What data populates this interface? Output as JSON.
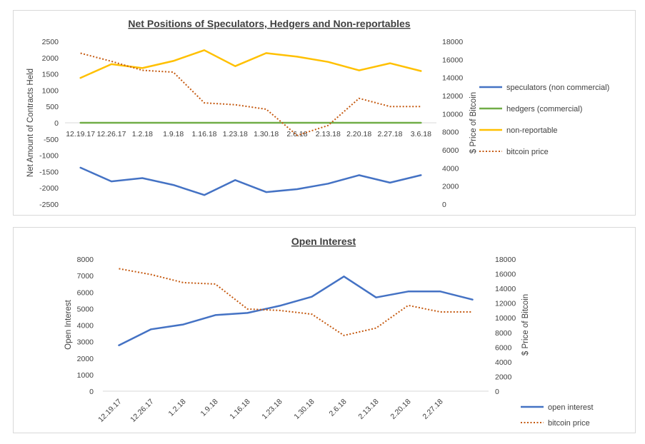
{
  "chart_data": [
    {
      "type": "line",
      "title": "Net Positions of Speculators, Hedgers and Non-reportables",
      "categories": [
        "12.19.17",
        "12.26.17",
        "1.2.18",
        "1.9.18",
        "1.16.18",
        "1.23.18",
        "1.30.18",
        "2.6.18",
        "2.13.18",
        "2.20.18",
        "2.27.18",
        "3.6.18"
      ],
      "ylabel": "Net Amount of Contracts Held",
      "y2label": "$ Price of Bitcoin",
      "ylim": [
        -2500,
        2500
      ],
      "y_ticks": [
        "2500",
        "2000",
        "1500",
        "1000",
        "500",
        "0",
        "-500",
        "-1000",
        "-1500",
        "-2000",
        "-2500"
      ],
      "y2lim": [
        0,
        18000
      ],
      "y2_ticks": [
        "18000",
        "16000",
        "14000",
        "12000",
        "10000",
        "8000",
        "6000",
        "4000",
        "2000",
        "0"
      ],
      "legend_position": "right",
      "series": [
        {
          "name": "speculators (non commercial)",
          "axis": "left",
          "color": "#4472c4",
          "style": "solid",
          "values": [
            -1380,
            -1800,
            -1700,
            -1910,
            -2220,
            -1760,
            -2130,
            -2040,
            -1870,
            -1610,
            -1840,
            -1610
          ]
        },
        {
          "name": "hedgers (commercial)",
          "axis": "left",
          "color": "#70ad47",
          "style": "solid",
          "values": [
            0,
            0,
            0,
            0,
            0,
            0,
            0,
            0,
            0,
            0,
            0,
            0
          ]
        },
        {
          "name": "non-reportable",
          "axis": "left",
          "color": "#ffc000",
          "style": "solid",
          "values": [
            1380,
            1800,
            1680,
            1900,
            2230,
            1740,
            2140,
            2030,
            1870,
            1610,
            1830,
            1590
          ]
        },
        {
          "name": "bitcoin price",
          "axis": "right",
          "color": "#c55a11",
          "style": "dotted",
          "values": [
            16700,
            15800,
            14800,
            14600,
            11200,
            11000,
            10500,
            7600,
            8700,
            11700,
            10800,
            10800
          ]
        }
      ]
    },
    {
      "type": "line",
      "title": "Open Interest",
      "categories": [
        "12.19.17",
        "12.26.17",
        "1.2.18",
        "1.9.18",
        "1.16.18",
        "1.23.18",
        "1.30.18",
        "2.6.18",
        "2.13.18",
        "2.20.18",
        "2.27.18",
        ""
      ],
      "ylabel": "Open Interest",
      "y2label": "$ Price of Bitcoin",
      "ylim": [
        0,
        8000
      ],
      "y_ticks": [
        "8000",
        "7000",
        "6000",
        "5000",
        "4000",
        "3000",
        "2000",
        "1000",
        "0"
      ],
      "y2lim": [
        0,
        18000
      ],
      "y2_ticks": [
        "18000",
        "16000",
        "14000",
        "12000",
        "10000",
        "8000",
        "6000",
        "4000",
        "2000",
        "0"
      ],
      "legend_position": "bottom-right",
      "series": [
        {
          "name": "open interest",
          "axis": "left",
          "color": "#4472c4",
          "style": "solid",
          "values": [
            2780,
            3750,
            4040,
            4610,
            4740,
            5170,
            5720,
            6950,
            5680,
            6040,
            6040,
            5550
          ]
        },
        {
          "name": "bitcoin price",
          "axis": "right",
          "color": "#c55a11",
          "style": "dotted",
          "values": [
            16700,
            15900,
            14800,
            14600,
            11200,
            11000,
            10500,
            7600,
            8600,
            11700,
            10800,
            10800
          ]
        }
      ]
    }
  ]
}
